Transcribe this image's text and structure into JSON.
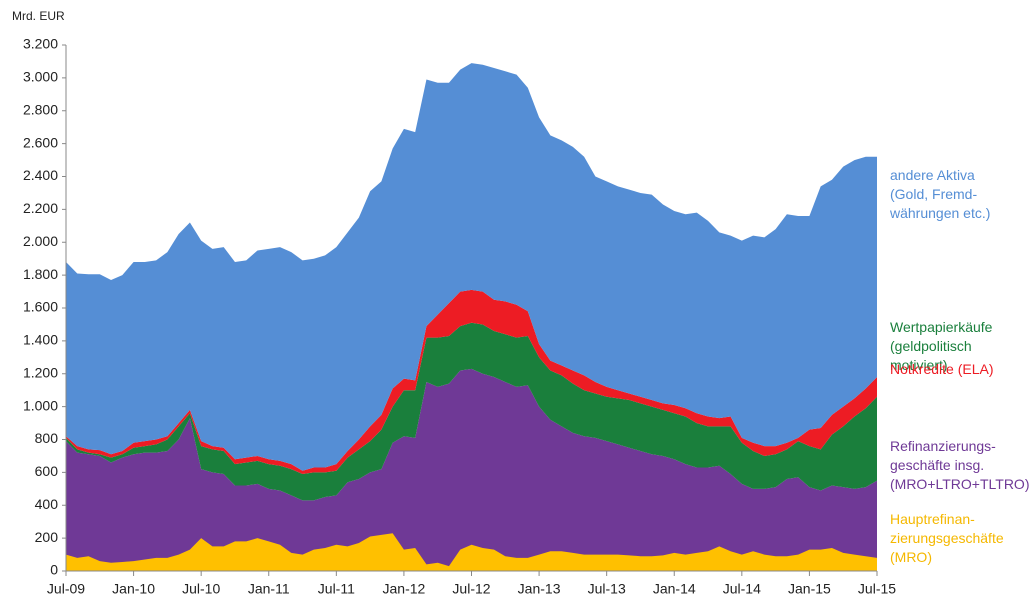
{
  "chart_data": {
    "type": "area",
    "y_label": "Mrd. EUR",
    "stacked": true,
    "categories": [
      "Jul-09",
      null,
      null,
      null,
      null,
      null,
      "Jan-10",
      null,
      null,
      null,
      null,
      null,
      "Jul-10",
      null,
      null,
      null,
      null,
      null,
      "Jan-11",
      null,
      null,
      null,
      null,
      null,
      "Jul-11",
      null,
      null,
      null,
      null,
      null,
      "Jan-12",
      null,
      null,
      null,
      null,
      null,
      "Jul-12",
      null,
      null,
      null,
      null,
      null,
      "Jan-13",
      null,
      null,
      null,
      null,
      null,
      "Jul-13",
      null,
      null,
      null,
      null,
      null,
      "Jan-14",
      null,
      null,
      null,
      null,
      null,
      "Jul-14",
      null,
      null,
      null,
      null,
      null,
      "Jan-15",
      null,
      null,
      null,
      null,
      null,
      "Jul-15"
    ],
    "ylim": [
      0,
      3200
    ],
    "yticks": [
      0,
      200,
      400,
      600,
      800,
      {
        "value": 1000,
        "label": "1.000"
      },
      {
        "value": 1200,
        "label": "1.200"
      },
      {
        "value": 1400,
        "label": "1.400"
      },
      {
        "value": 1600,
        "label": "1.600"
      },
      {
        "value": 1800,
        "label": "1.800"
      },
      {
        "value": 2000,
        "label": "2.000"
      },
      {
        "value": 2200,
        "label": "2.200"
      },
      {
        "value": 2400,
        "label": "2.400"
      },
      {
        "value": 2600,
        "label": "2.600"
      },
      {
        "value": 2800,
        "label": "2.800"
      },
      {
        "value": 3000,
        "label": "3.000"
      },
      {
        "value": 3200,
        "label": "3.200"
      }
    ],
    "series": [
      {
        "name": "Refinanzierungs-\ngeschäfte insg.\n(MRO+LTRO+TLTRO)",
        "color": "#6f3996",
        "values": [
          790,
          720,
          710,
          700,
          660,
          690,
          710,
          720,
          720,
          730,
          800,
          930,
          620,
          600,
          590,
          520,
          520,
          530,
          500,
          490,
          460,
          430,
          430,
          450,
          460,
          540,
          560,
          600,
          620,
          780,
          820,
          810,
          1150,
          1120,
          1140,
          1220,
          1230,
          1200,
          1180,
          1150,
          1120,
          1130,
          1000,
          920,
          880,
          840,
          820,
          810,
          790,
          770,
          750,
          730,
          710,
          700,
          680,
          650,
          630,
          630,
          640,
          590,
          530,
          500,
          500,
          510,
          560,
          570,
          510,
          490,
          520,
          510,
          500,
          510,
          550
        ]
      },
      {
        "name": "Wertpapierkäufe\n(geldpolitisch\nmotiviert)",
        "color": "#1a7f3c",
        "values": [
          20,
          20,
          10,
          10,
          30,
          20,
          40,
          40,
          50,
          70,
          80,
          30,
          140,
          140,
          140,
          130,
          140,
          140,
          150,
          150,
          160,
          160,
          170,
          150,
          150,
          150,
          180,
          190,
          240,
          220,
          280,
          290,
          270,
          300,
          290,
          270,
          280,
          300,
          280,
          290,
          300,
          300,
          300,
          300,
          310,
          300,
          280,
          270,
          270,
          280,
          290,
          290,
          290,
          280,
          280,
          290,
          270,
          250,
          240,
          290,
          250,
          230,
          200,
          200,
          180,
          220,
          250,
          250,
          310,
          370,
          440,
          480,
          510
        ]
      },
      {
        "name": "Notkredite (ELA)",
        "color": "#ed1c24",
        "values": [
          10,
          20,
          20,
          25,
          20,
          20,
          30,
          30,
          30,
          20,
          20,
          20,
          30,
          20,
          20,
          30,
          30,
          30,
          30,
          30,
          30,
          20,
          30,
          30,
          40,
          40,
          60,
          90,
          90,
          110,
          70,
          60,
          70,
          140,
          200,
          210,
          200,
          200,
          190,
          200,
          200,
          150,
          80,
          60,
          60,
          80,
          90,
          70,
          60,
          50,
          40,
          40,
          40,
          40,
          50,
          50,
          60,
          60,
          50,
          60,
          30,
          50,
          60,
          50,
          40,
          20,
          100,
          130,
          120,
          120,
          110,
          120,
          120
        ]
      },
      {
        "name": "andere Aktiva\n(Gold, Fremd-\nwährungen etc.)",
        "color": "#558ed5",
        "values": [
          1060,
          1050,
          1065,
          1070,
          1060,
          1070,
          1100,
          1090,
          1090,
          1120,
          1150,
          1140,
          1220,
          1200,
          1220,
          1200,
          1200,
          1250,
          1280,
          1300,
          1290,
          1280,
          1270,
          1290,
          1320,
          1330,
          1350,
          1430,
          1420,
          1460,
          1520,
          1510,
          1500,
          1410,
          1340,
          1350,
          1380,
          1380,
          1410,
          1400,
          1400,
          1360,
          1380,
          1370,
          1370,
          1360,
          1330,
          1250,
          1250,
          1240,
          1240,
          1240,
          1250,
          1210,
          1180,
          1180,
          1220,
          1190,
          1130,
          1100,
          1200,
          1260,
          1270,
          1320,
          1390,
          1350,
          1300,
          1470,
          1430,
          1460,
          1450,
          1410,
          1340
        ]
      },
      {
        "name": "Hauptrefinan-\nzierungsgeschäfte\n(MRO)",
        "color": "#ffc000",
        "stacked": false,
        "values": [
          100,
          80,
          90,
          60,
          50,
          55,
          60,
          70,
          80,
          80,
          100,
          130,
          200,
          150,
          150,
          180,
          180,
          200,
          180,
          160,
          110,
          100,
          130,
          140,
          160,
          150,
          170,
          210,
          220,
          230,
          130,
          140,
          40,
          50,
          30,
          130,
          160,
          140,
          130,
          90,
          80,
          80,
          100,
          120,
          120,
          110,
          100,
          100,
          100,
          100,
          95,
          90,
          90,
          95,
          110,
          100,
          110,
          120,
          150,
          120,
          100,
          120,
          100,
          90,
          90,
          100,
          130,
          130,
          140,
          110,
          100,
          90,
          80
        ]
      }
    ]
  }
}
